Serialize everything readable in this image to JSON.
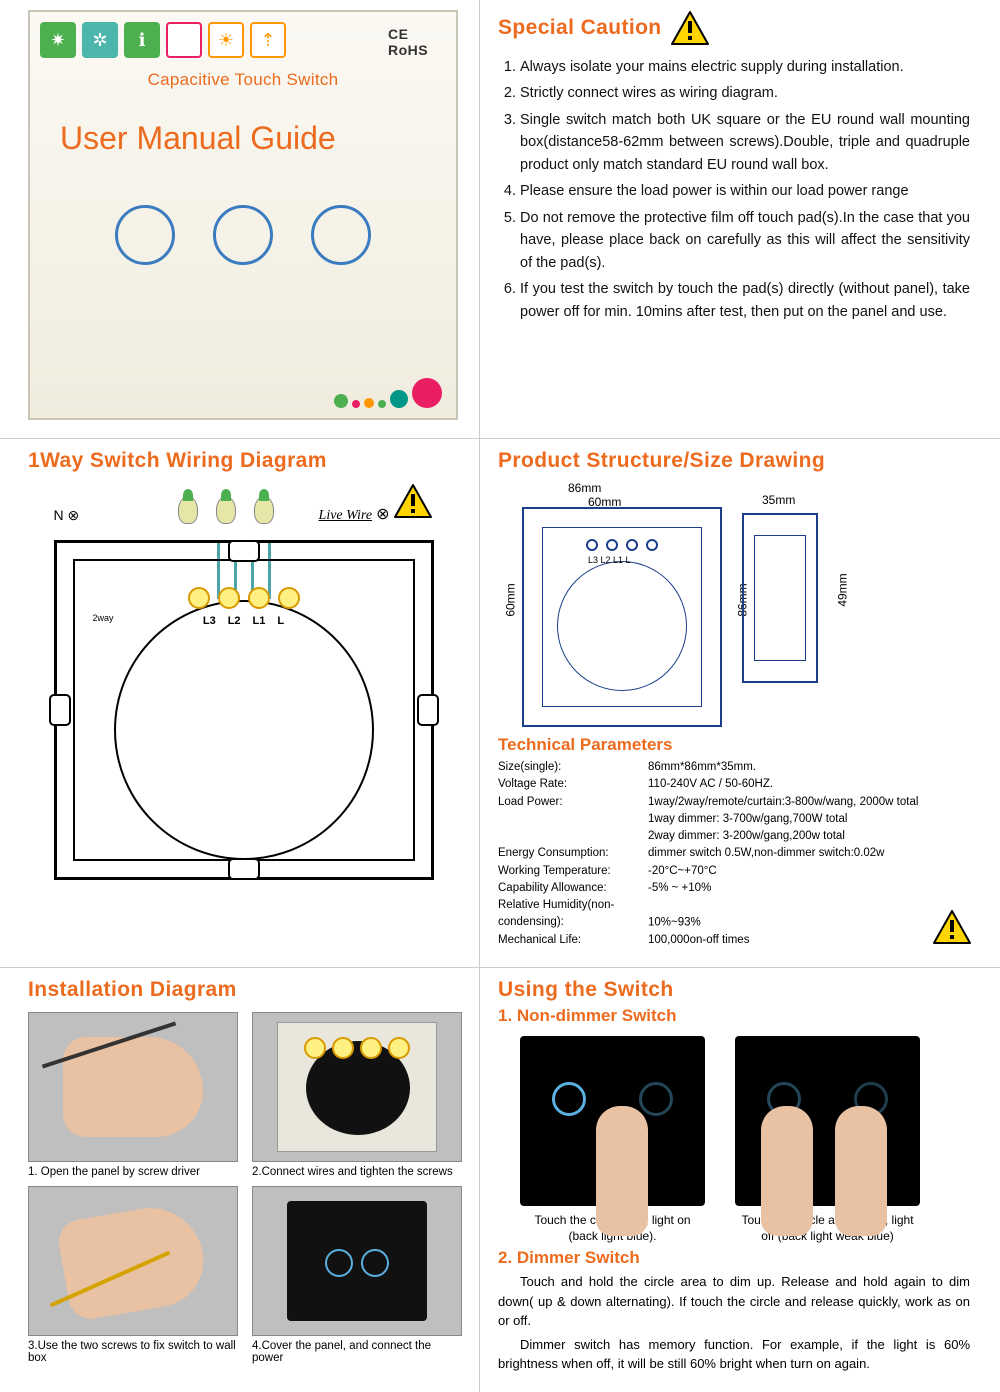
{
  "colors": {
    "accent": "#ec6b1e",
    "ring": "#3b7bbf",
    "blueprint": "#1b3f8b",
    "terminal": "#d99a00",
    "wire": "#4aa6a6",
    "skin": "#e9c1a3",
    "ring_glow": "#5bb0e0"
  },
  "cover": {
    "ce_rohs": "CE RoHS",
    "subtitle": "Capacitive Touch Switch",
    "title": "User Manual Guide",
    "dots": [
      [
        "#4caf50",
        14
      ],
      [
        "#e91e63",
        8
      ],
      [
        "#ff9800",
        10
      ],
      [
        "#4caf50",
        8
      ],
      [
        "#009688",
        18
      ],
      [
        "#e91e63",
        30
      ]
    ],
    "ring_count": 3
  },
  "caution": {
    "heading": "Special Caution",
    "items": [
      "Always isolate your mains electric supply during installation.",
      "Strictly connect wires as wiring diagram.",
      "Single switch match both UK square or the EU round wall mounting box(distance58-62mm between screws).Double, triple and quadruple product only match standard EU round wall box.",
      "Please ensure the load power is within our load power range",
      "Do not remove the protective film off touch pad(s).In the case that you have, please place back on carefully as this will affect the sensitivity of the pad(s).",
      "If you test the switch by touch the pad(s) directly (without panel), take power off for min. 10mins after test, then put on the panel and use."
    ]
  },
  "wiring": {
    "heading": "1Way Switch Wiring Diagram",
    "n_label": "N ⊗",
    "live_label": "Live Wire",
    "live_sym": "⊗",
    "terminals": [
      "L3",
      "L2",
      "L1",
      "L"
    ],
    "two_way": "2way"
  },
  "structure": {
    "heading": "Product Structure/Size Drawing",
    "dims": {
      "w_outer": "86mm",
      "w_inner": "60mm",
      "h_inner": "60mm",
      "h_outer": "86mm",
      "depth": "35mm",
      "depth_inner": "49mm"
    },
    "tech_heading": "Technical Parameters",
    "params": [
      [
        "Size(single):",
        "86mm*86mm*35mm."
      ],
      [
        "Voltage Rate:",
        "110-240V AC / 50-60HZ."
      ],
      [
        "Load Power:",
        "1way/2way/remote/curtain:3-800w/wang, 2000w total"
      ],
      [
        "",
        "1way dimmer: 3-700w/gang,700W total"
      ],
      [
        "",
        "2way dimmer: 3-200w/gang,200w total"
      ],
      [
        "Energy Consumption:",
        "dimmer switch 0.5W,non-dimmer switch:0.02w"
      ],
      [
        "Working Temperature:",
        "-20°C~+70°C"
      ],
      [
        "Capability Allowance:",
        "-5% ~ +10%"
      ],
      [
        "Relative Humidity(non-condensing):",
        "10%~93%"
      ],
      [
        "Mechanical Life:",
        "100,000on-off times"
      ]
    ]
  },
  "install": {
    "heading": "Installation Diagram",
    "captions": [
      "1. Open the panel by screw driver",
      "2.Connect wires and tighten the screws",
      "3.Use the two screws to fix switch to wall box",
      "4.Cover the panel, and connect the power"
    ]
  },
  "using": {
    "heading": "Using the Switch",
    "non_dimmer_heading": "1. Non-dimmer Switch",
    "touch1_cap": "Touch the circle area, light on (back light blue).",
    "touch2_cap": "Touch the circle area again, light off (back light weak blue)",
    "dimmer_heading": "2. Dimmer Switch",
    "dimmer_p1": "Touch and hold the circle area to dim up. Release and hold again to dim down( up & down alternating). If touch the circle and release quickly, work as on or off.",
    "dimmer_p2": "Dimmer switch has memory function. For example, if the light is 60% brightness when off, it will be still 60% bright when turn on again."
  }
}
